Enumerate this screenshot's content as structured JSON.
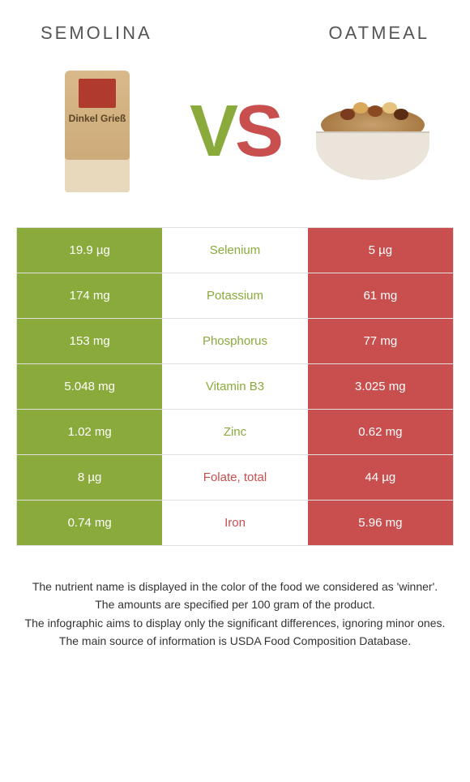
{
  "colors": {
    "green": "#8aaa3b",
    "red": "#c94f4f",
    "white": "#ffffff",
    "text": "#555555"
  },
  "left": {
    "title": "SEMOLINA",
    "bag_text": "Dinkel Grieß"
  },
  "right": {
    "title": "OATMEAL"
  },
  "vs": {
    "v": "V",
    "s": "S"
  },
  "rows": [
    {
      "nutrient": "Selenium",
      "left": "19.9 µg",
      "right": "5 µg",
      "winner": "left"
    },
    {
      "nutrient": "Potassium",
      "left": "174 mg",
      "right": "61 mg",
      "winner": "left"
    },
    {
      "nutrient": "Phosphorus",
      "left": "153 mg",
      "right": "77 mg",
      "winner": "left"
    },
    {
      "nutrient": "Vitamin B3",
      "left": "5.048 mg",
      "right": "3.025 mg",
      "winner": "left"
    },
    {
      "nutrient": "Zinc",
      "left": "1.02 mg",
      "right": "0.62 mg",
      "winner": "left"
    },
    {
      "nutrient": "Folate, total",
      "left": "8 µg",
      "right": "44 µg",
      "winner": "right"
    },
    {
      "nutrient": "Iron",
      "left": "0.74 mg",
      "right": "5.96 mg",
      "winner": "right"
    }
  ],
  "footer": [
    "The nutrient name is displayed in the color of the food we considered as 'winner'.",
    "The amounts are specified per 100 gram of the product.",
    "The infographic aims to display only the significant differences, ignoring minor ones.",
    "The main source of information is USDA Food Composition Database."
  ]
}
